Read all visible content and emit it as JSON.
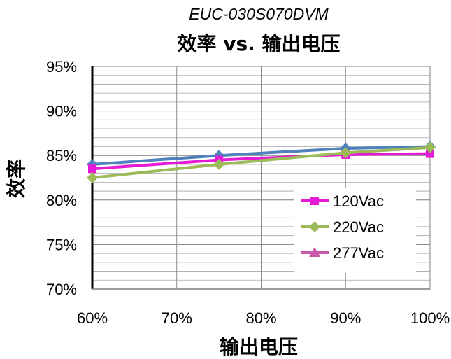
{
  "chart_data": {
    "type": "line",
    "model": "EUC-030S070DVM",
    "title": "效率 vs. 输出电压",
    "xlabel": "输出电压",
    "ylabel": "效率",
    "x": [
      60,
      75,
      90,
      100
    ],
    "x_ticks": [
      "60%",
      "70%",
      "80%",
      "90%",
      "100%"
    ],
    "x_tick_values": [
      60,
      70,
      80,
      90,
      100
    ],
    "y_ticks": [
      "70%",
      "75%",
      "80%",
      "85%",
      "90%",
      "95%"
    ],
    "y_tick_values": [
      70,
      75,
      80,
      85,
      90,
      95
    ],
    "xlim": [
      60,
      100
    ],
    "ylim": [
      70,
      95
    ],
    "grid": true,
    "legend_position": "right",
    "series": [
      {
        "name": "",
        "values": [
          84.0,
          85.0,
          85.8,
          86.0
        ],
        "color": "#4f81bd",
        "marker": "diamond"
      },
      {
        "name": "120Vac",
        "values": [
          83.5,
          84.5,
          85.1,
          85.2
        ],
        "color": "#e619d6",
        "marker": "square"
      },
      {
        "name": "220Vac",
        "values": [
          82.5,
          84.0,
          85.3,
          85.9
        ],
        "color": "#9bbb59",
        "marker": "diamond"
      },
      {
        "name": "277Vac",
        "values": [
          null,
          null,
          null,
          null
        ],
        "color": "#c65aa8",
        "marker": "triangle"
      }
    ]
  }
}
